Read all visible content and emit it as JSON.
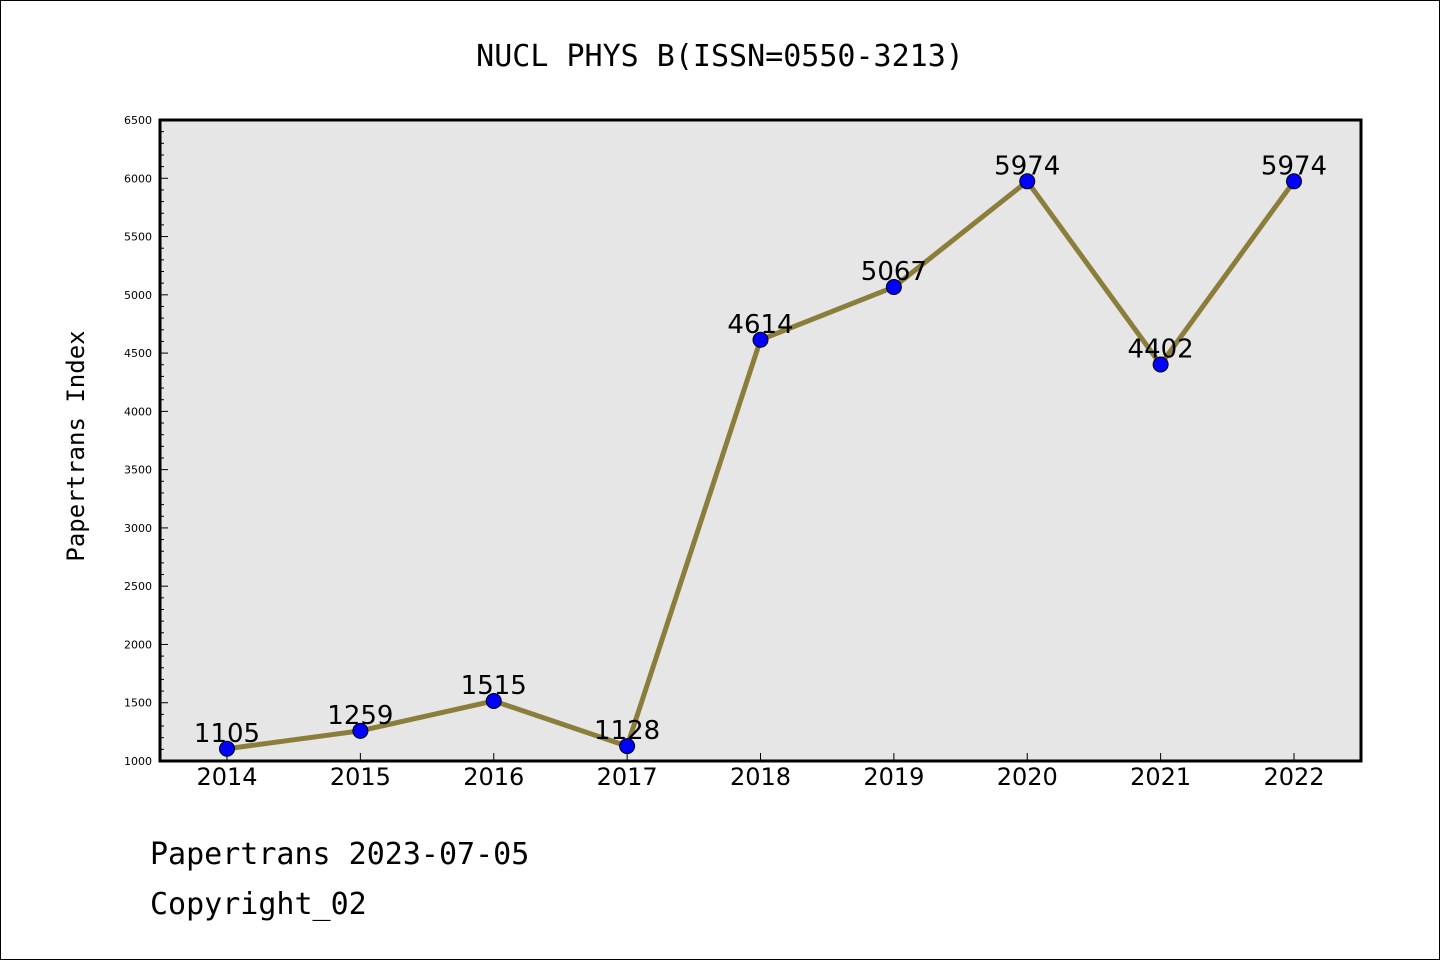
{
  "chart_data": {
    "type": "line",
    "title": "NUCL PHYS B(ISSN=0550-3213)",
    "xlabel": "",
    "ylabel": "Papertrans Index",
    "categories": [
      "2014",
      "2015",
      "2016",
      "2017",
      "2018",
      "2019",
      "2020",
      "2021",
      "2022"
    ],
    "series": [
      {
        "values": [
          1105,
          1259,
          1515,
          1128,
          4614,
          5067,
          5974,
          4402,
          5974
        ]
      }
    ],
    "data_labels": [
      "1105",
      "1259",
      "1515",
      "1128",
      "4614",
      "5067",
      "5974",
      "4402",
      "5974"
    ],
    "ylim": [
      1000,
      6500
    ],
    "yticks": [
      1000,
      1500,
      2000,
      2500,
      3000,
      3500,
      4000,
      4500,
      5000,
      5500,
      6000,
      6500
    ],
    "grid": false,
    "colors": {
      "line": "#8b7d3a",
      "marker": "#0000ff",
      "plot_background": "#e6e6e6"
    }
  },
  "footer": {
    "line1": "Papertrans 2023-07-05",
    "line2": "Copyright_02"
  }
}
